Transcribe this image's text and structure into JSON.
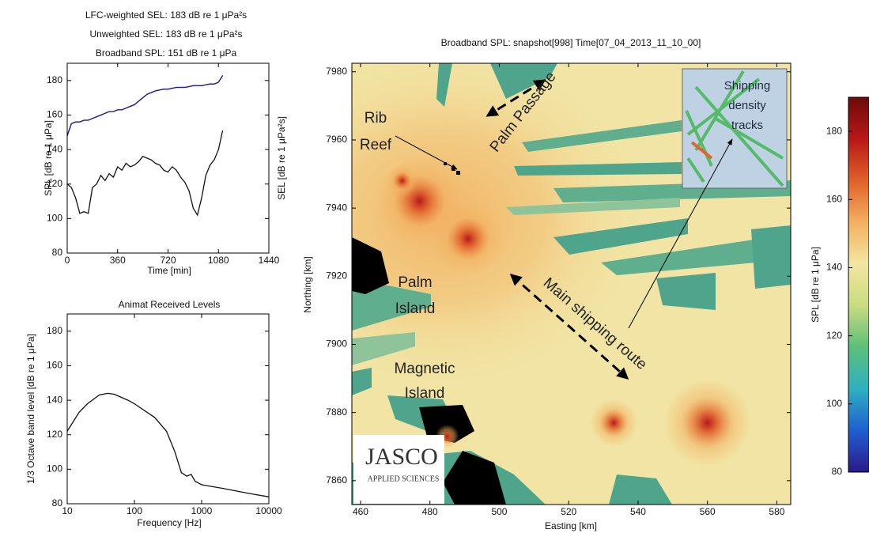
{
  "logo": {
    "name": "JASCO",
    "subtitle": "APPLIED SCIENCES"
  },
  "chart_data": [
    {
      "type": "line",
      "xlabel": "Time [min]",
      "ylabel": "SPL [dB re 1 μPa]",
      "y2label": "SEL [dB re 1 μPa²s]",
      "xlim": [
        0,
        1440
      ],
      "xticks": [
        0,
        360,
        720,
        1080,
        1440
      ],
      "ylim": [
        80,
        190
      ],
      "yticks": [
        80,
        100,
        120,
        140,
        160,
        180
      ],
      "x": [
        0,
        30,
        60,
        90,
        120,
        150,
        180,
        210,
        240,
        270,
        300,
        330,
        360,
        390,
        420,
        450,
        480,
        510,
        540,
        570,
        600,
        630,
        660,
        690,
        720,
        750,
        780,
        810,
        840,
        870,
        900,
        930,
        960,
        990,
        1020,
        1050,
        1080,
        1110
      ],
      "series": [
        {
          "name": "LFC-weighted SEL: 183 dB re 1 μPa²s",
          "color": "#1c1c9a",
          "values": [
            148,
            155,
            156,
            156,
            157,
            157,
            158,
            159,
            160,
            161,
            162,
            162,
            163,
            163,
            164,
            165,
            166,
            168,
            170,
            172,
            173,
            174,
            174.5,
            175,
            175,
            175.5,
            176,
            176,
            176,
            176.5,
            177,
            177,
            177,
            177.5,
            178,
            178,
            179,
            183
          ]
        },
        {
          "name": "Unweighted SEL: 183 dB re 1 μPa²s",
          "color": "#b01818",
          "values": [
            148,
            155,
            156,
            156,
            157,
            157,
            158,
            159,
            160,
            161,
            162,
            162,
            163,
            163,
            164,
            165,
            166,
            168,
            170,
            172,
            173,
            174,
            174.5,
            175,
            175,
            175.5,
            176,
            176,
            176,
            176.5,
            177,
            177,
            177,
            177.5,
            178,
            178,
            179,
            183
          ]
        },
        {
          "name": "Broadband SPL: 151 dB re 1 μPa",
          "color": "#111111",
          "values": [
            120,
            118,
            112,
            103,
            104,
            103,
            118,
            120,
            125,
            122,
            126,
            124,
            130,
            128,
            132,
            130,
            131,
            133,
            136,
            135,
            134,
            132,
            131,
            128,
            127,
            130,
            128,
            124,
            121,
            116,
            106,
            102,
            112,
            125,
            131,
            134,
            140,
            151
          ]
        }
      ]
    },
    {
      "type": "line",
      "title": "Animat Received Levels",
      "xlabel": "Frequency [Hz]",
      "ylabel": "1/3 Octave band level [dB re 1 μPa]",
      "log_x": true,
      "xlim": [
        10,
        10000
      ],
      "xticks": [
        10,
        100,
        1000,
        10000
      ],
      "ylim": [
        80,
        190
      ],
      "yticks": [
        80,
        100,
        120,
        140,
        160,
        180
      ],
      "x": [
        10,
        15,
        20,
        30,
        40,
        50,
        80,
        100,
        200,
        300,
        400,
        500,
        600,
        700,
        800,
        1000,
        2000,
        5000,
        10000
      ],
      "values": [
        122,
        133,
        138,
        143,
        144,
        143.5,
        140,
        138,
        130,
        122,
        110,
        98,
        96,
        97,
        93,
        91,
        89,
        86,
        84
      ],
      "color": "#111111"
    },
    {
      "type": "map",
      "title": "Broadband SPL: snapshot[998] Time[07_04_2013_11_10_00]",
      "xlabel": "Easting [km]",
      "ylabel": "Northing [km]",
      "xlim": [
        457.5,
        584
      ],
      "xticks": [
        460,
        480,
        500,
        520,
        540,
        560,
        580
      ],
      "ylim": [
        7853,
        7982.5
      ],
      "yticks": [
        7860,
        7880,
        7900,
        7920,
        7940,
        7960,
        7980
      ],
      "background": "#f1e4a4",
      "sources": [
        {
          "x": 477,
          "y": 7942
        },
        {
          "x": 472,
          "y": 7948
        },
        {
          "x": 491,
          "y": 7931
        },
        {
          "x": 533,
          "y": 7877
        },
        {
          "x": 560,
          "y": 7877
        },
        {
          "x": 485,
          "y": 7873
        }
      ],
      "annotations": [
        {
          "lines": [
            "Rib",
            "Reef"
          ]
        },
        {
          "lines": [
            "Palm Passage"
          ]
        },
        {
          "lines": [
            "Palm",
            "Island"
          ]
        },
        {
          "lines": [
            "Magnetic",
            "Island"
          ]
        },
        {
          "lines": [
            "Main shipping route"
          ]
        },
        {
          "lines": [
            "Shipping",
            "density",
            "tracks"
          ]
        }
      ],
      "colorbar": {
        "label": "SPL [dB re 1 μPa]",
        "lim": [
          80,
          190
        ],
        "ticks": [
          80,
          100,
          120,
          140,
          160,
          180
        ],
        "colors": [
          "#2a1a8a",
          "#1f5fd0",
          "#2fb0c0",
          "#5cbf7a",
          "#c8dc80",
          "#f3e6a2",
          "#f3b060",
          "#e0602a",
          "#b81818",
          "#6b0a0a"
        ]
      }
    }
  ]
}
